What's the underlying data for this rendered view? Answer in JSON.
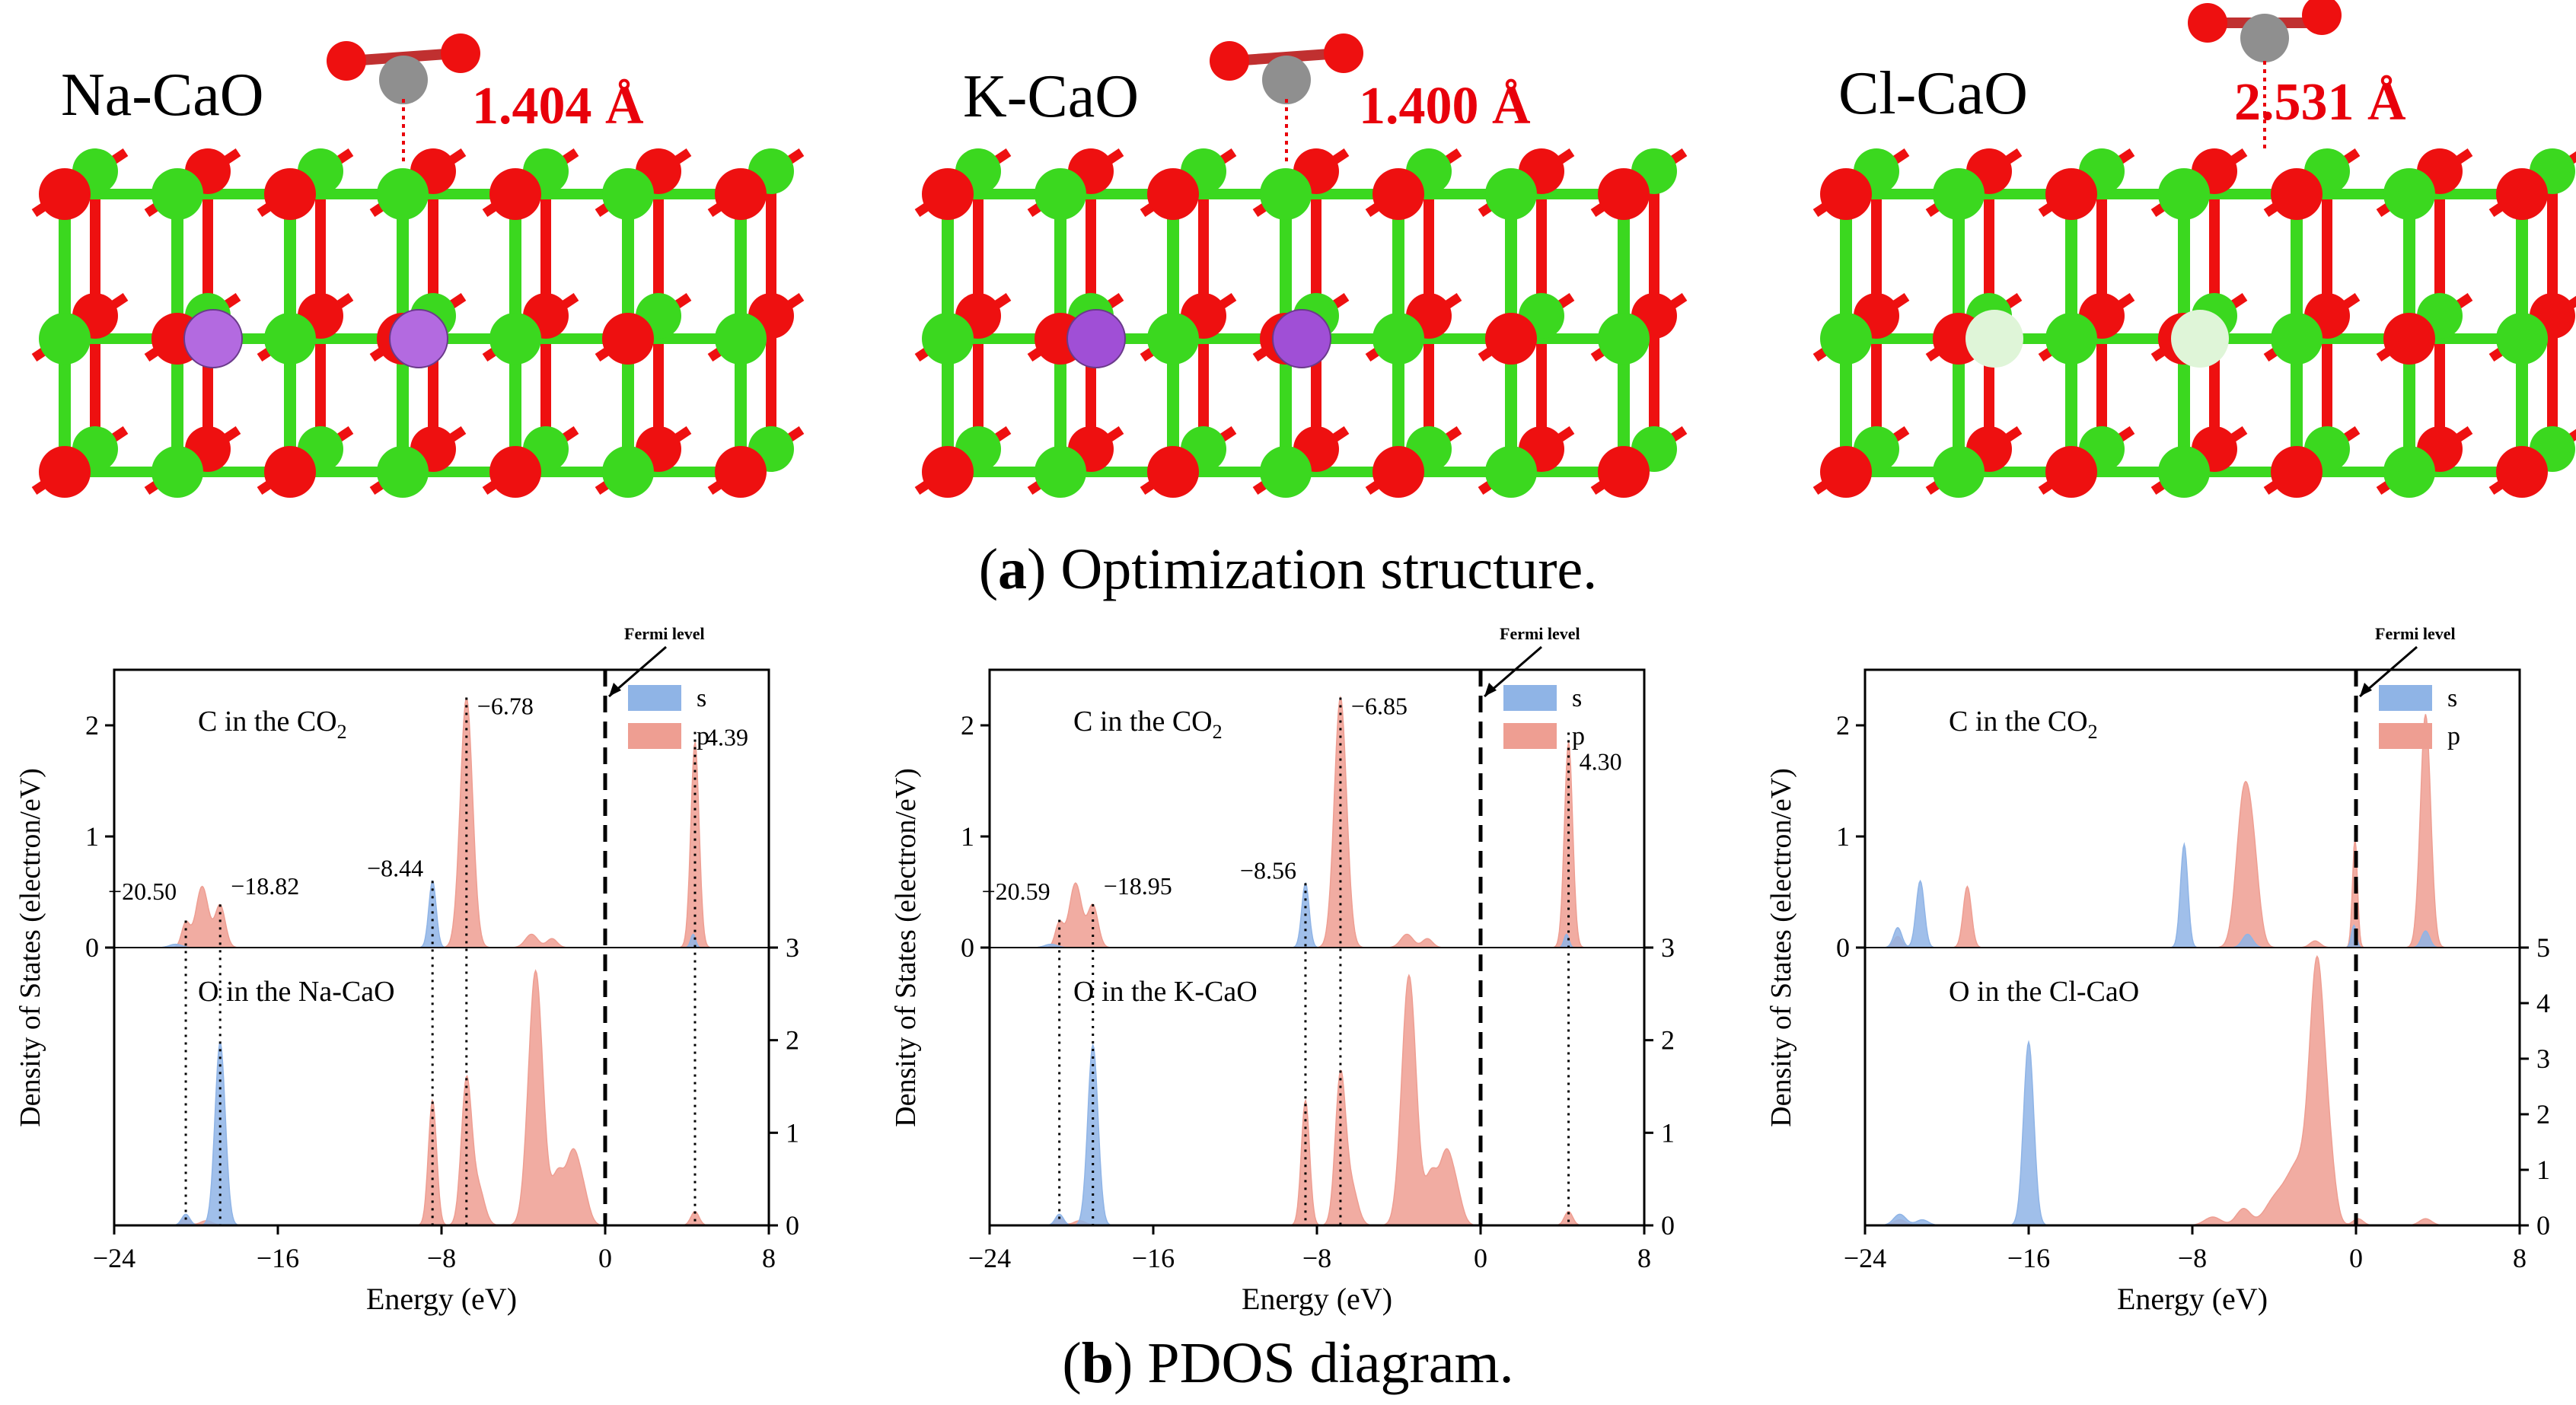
{
  "structures": [
    {
      "title": "Na-CaO",
      "dopant_color": "#b36ae0",
      "distance": "1.404 Å",
      "co2_height": "adsorbed"
    },
    {
      "title": "K-CaO",
      "dopant_color": "#a04fd6",
      "distance": "1.400 Å",
      "co2_height": "adsorbed"
    },
    {
      "title": "Cl-CaO",
      "dopant_color": "#dff5d8",
      "distance": "2.531 Å",
      "co2_height": "physisorbed"
    }
  ],
  "captions": {
    "a_label": "a",
    "a_text": "Optimization structure.",
    "b_label": "b",
    "b_text": "PDOS diagram."
  },
  "colors": {
    "s": "#8fb4e6",
    "p": "#ee9e92",
    "ca": "#3bd81f",
    "o": "#ee1010",
    "c": "#8f8f8f"
  },
  "chart_data": [
    {
      "type": "area",
      "fermi_label": "Fermi level",
      "xlabel": "Energy (eV)",
      "ylabel": "Density of States (electron/eV)",
      "xlim": [
        -24,
        8
      ],
      "xticks": [
        "-24",
        "-16",
        "-8",
        "0",
        "8"
      ],
      "top": {
        "label_main": "C in the CO",
        "label_sub": "2",
        "ylim": [
          0,
          2.5
        ],
        "yticks": [
          "0",
          "1",
          "2"
        ],
        "legend": [
          "s",
          "p"
        ],
        "peaks_s": [
          [
            -21.0,
            0.03,
            0.3
          ],
          [
            -8.44,
            0.6,
            0.18
          ],
          [
            4.3,
            0.12,
            0.12
          ]
        ],
        "peaks_p": [
          [
            -20.5,
            0.22,
            0.2
          ],
          [
            -19.7,
            0.55,
            0.3
          ],
          [
            -18.82,
            0.38,
            0.25
          ],
          [
            -6.78,
            2.25,
            0.3
          ],
          [
            -3.6,
            0.12,
            0.3
          ],
          [
            -2.6,
            0.08,
            0.25
          ],
          [
            4.39,
            1.85,
            0.2
          ]
        ],
        "annotations": [
          {
            "text": "−20.50",
            "x": -20.5,
            "y": 0.43,
            "anchor": "end"
          },
          {
            "text": "−18.82",
            "x": -18.82,
            "y": 0.48,
            "anchor": "start"
          },
          {
            "text": "−8.44",
            "x": -8.44,
            "y": 0.64,
            "anchor": "end"
          },
          {
            "text": "−6.78",
            "x": -6.78,
            "y": 2.1,
            "anchor": "start"
          },
          {
            "text": "4.39",
            "x": 4.39,
            "y": 1.82,
            "anchor": "start"
          }
        ]
      },
      "bottom": {
        "label": "O in the Na-CaO",
        "ylim": [
          0,
          3
        ],
        "yticks": [
          "0",
          "1",
          "2",
          "3"
        ],
        "peaks_s": [
          [
            -20.5,
            0.12,
            0.2
          ],
          [
            -18.82,
            1.98,
            0.25
          ]
        ],
        "peaks_p": [
          [
            -20.5,
            0.08,
            0.2
          ],
          [
            -19.5,
            0.05,
            0.3
          ],
          [
            -8.44,
            1.35,
            0.2
          ],
          [
            -6.78,
            1.55,
            0.25
          ],
          [
            -6.2,
            0.4,
            0.3
          ],
          [
            -3.4,
            2.75,
            0.35
          ],
          [
            -2.3,
            0.55,
            0.3
          ],
          [
            -1.6,
            0.7,
            0.3
          ],
          [
            -1.1,
            0.35,
            0.3
          ],
          [
            4.39,
            0.15,
            0.2
          ]
        ]
      },
      "vlines": [
        -20.5,
        -18.82,
        -8.44,
        -6.78,
        4.39
      ]
    },
    {
      "type": "area",
      "fermi_label": "Fermi level",
      "xlabel": "Energy (eV)",
      "ylabel": "Density of States (electron/eV)",
      "xlim": [
        -24,
        8
      ],
      "xticks": [
        "-24",
        "-16",
        "-8",
        "0",
        "8"
      ],
      "top": {
        "label_main": "C in the CO",
        "label_sub": "2",
        "ylim": [
          0,
          2.5
        ],
        "yticks": [
          "0",
          "1",
          "2"
        ],
        "legend": [
          "s",
          "p"
        ],
        "peaks_s": [
          [
            -21.0,
            0.03,
            0.3
          ],
          [
            -8.56,
            0.58,
            0.18
          ],
          [
            4.2,
            0.12,
            0.12
          ]
        ],
        "peaks_p": [
          [
            -20.59,
            0.22,
            0.2
          ],
          [
            -19.8,
            0.58,
            0.3
          ],
          [
            -18.95,
            0.38,
            0.25
          ],
          [
            -6.85,
            2.25,
            0.3
          ],
          [
            -3.6,
            0.12,
            0.3
          ],
          [
            -2.6,
            0.08,
            0.25
          ],
          [
            4.3,
            1.85,
            0.2
          ]
        ],
        "annotations": [
          {
            "text": "−20.59",
            "x": -20.59,
            "y": 0.43,
            "anchor": "end"
          },
          {
            "text": "−18.95",
            "x": -18.95,
            "y": 0.48,
            "anchor": "start"
          },
          {
            "text": "−8.56",
            "x": -8.56,
            "y": 0.62,
            "anchor": "end"
          },
          {
            "text": "−6.85",
            "x": -6.85,
            "y": 2.1,
            "anchor": "start"
          },
          {
            "text": "4.30",
            "x": 4.3,
            "y": 1.6,
            "anchor": "start"
          }
        ]
      },
      "bottom": {
        "label": "O in the K-CaO",
        "ylim": [
          0,
          3
        ],
        "yticks": [
          "0",
          "1",
          "2",
          "3"
        ],
        "peaks_s": [
          [
            -20.59,
            0.12,
            0.2
          ],
          [
            -18.95,
            1.95,
            0.25
          ]
        ],
        "peaks_p": [
          [
            -20.59,
            0.08,
            0.2
          ],
          [
            -19.6,
            0.05,
            0.3
          ],
          [
            -8.56,
            1.35,
            0.2
          ],
          [
            -6.85,
            1.6,
            0.25
          ],
          [
            -6.3,
            0.4,
            0.3
          ],
          [
            -3.5,
            2.7,
            0.35
          ],
          [
            -2.4,
            0.55,
            0.3
          ],
          [
            -1.7,
            0.7,
            0.3
          ],
          [
            -1.2,
            0.35,
            0.3
          ],
          [
            4.3,
            0.15,
            0.2
          ]
        ]
      },
      "vlines": [
        -20.59,
        -18.95,
        -8.56,
        -6.85,
        4.3
      ]
    },
    {
      "type": "area",
      "fermi_label": "Fermi level",
      "xlabel": "Energy (eV)",
      "ylabel": "Density of States (electron/eV)",
      "xlim": [
        -24,
        8
      ],
      "xticks": [
        "-24",
        "-16",
        "-8",
        "0",
        "8"
      ],
      "top": {
        "label_main": "C in the CO",
        "label_sub": "2",
        "ylim": [
          0,
          2.5
        ],
        "yticks": [
          "0",
          "1",
          "2"
        ],
        "legend": [
          "s",
          "p"
        ],
        "peaks_s": [
          [
            -22.4,
            0.18,
            0.2
          ],
          [
            -21.3,
            0.6,
            0.2
          ],
          [
            -8.4,
            0.93,
            0.18
          ],
          [
            -5.3,
            0.12,
            0.25
          ],
          [
            -0.1,
            0.2,
            0.12
          ],
          [
            3.4,
            0.15,
            0.2
          ]
        ],
        "peaks_p": [
          [
            -22.4,
            0.1,
            0.2
          ],
          [
            -19.0,
            0.55,
            0.2
          ],
          [
            -5.5,
            1.3,
            0.35
          ],
          [
            -5.0,
            0.6,
            0.3
          ],
          [
            -2.0,
            0.06,
            0.25
          ],
          [
            -0.05,
            0.98,
            0.12
          ],
          [
            3.4,
            2.1,
            0.25
          ]
        ],
        "annotations": []
      },
      "bottom": {
        "label": "O in the Cl-CaO",
        "ylim": [
          0,
          5
        ],
        "yticks": [
          "0",
          "1",
          "2",
          "3",
          "4",
          "5"
        ],
        "peaks_s": [
          [
            -22.3,
            0.2,
            0.3
          ],
          [
            -21.2,
            0.1,
            0.3
          ],
          [
            -16.0,
            3.3,
            0.25
          ]
        ],
        "peaks_p": [
          [
            -22.3,
            0.1,
            0.3
          ],
          [
            -7.0,
            0.15,
            0.4
          ],
          [
            -5.5,
            0.3,
            0.35
          ],
          [
            -4.0,
            0.4,
            0.5
          ],
          [
            -2.8,
            1.1,
            0.6
          ],
          [
            -1.9,
            4.35,
            0.35
          ],
          [
            -1.3,
            1.0,
            0.3
          ],
          [
            0.1,
            0.12,
            0.25
          ],
          [
            3.4,
            0.12,
            0.3
          ]
        ]
      },
      "vlines": []
    }
  ]
}
